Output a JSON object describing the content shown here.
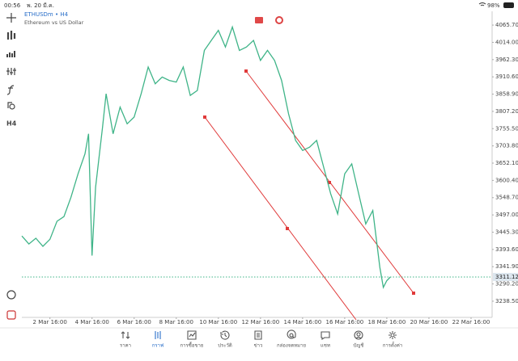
{
  "status_bar": {
    "time": "00:56",
    "date": "พ. 20 มี.ค.",
    "battery": "98%"
  },
  "toolbar": {
    "timeframe": "H4"
  },
  "chart_data": {
    "type": "line",
    "title": "ETHUSDm • H4",
    "subtitle": "Ethereum vs US Dollar",
    "x": [
      "1 Mar 08:00",
      "1 Mar 16:00",
      "2 Mar 00:00",
      "2 Mar 08:00",
      "2 Mar 16:00",
      "3 Mar 00:00",
      "3 Mar 08:00",
      "3 Mar 16:00",
      "4 Mar 00:00",
      "4 Mar 08:00",
      "4 Mar 12:00",
      "4 Mar 16:00",
      "4 Mar 20:00",
      "5 Mar 04:00",
      "5 Mar 08:00",
      "5 Mar 16:00",
      "6 Mar 00:00",
      "6 Mar 08:00",
      "6 Mar 16:00",
      "7 Mar 00:00",
      "7 Mar 08:00",
      "7 Mar 16:00",
      "8 Mar 00:00",
      "8 Mar 08:00",
      "8 Mar 16:00",
      "9 Mar 00:00",
      "9 Mar 08:00",
      "9 Mar 16:00",
      "10 Mar 00:00",
      "10 Mar 08:00",
      "10 Mar 16:00",
      "11 Mar 00:00",
      "11 Mar 08:00",
      "11 Mar 16:00",
      "12 Mar 00:00",
      "12 Mar 08:00",
      "12 Mar 16:00",
      "13 Mar 00:00",
      "13 Mar 08:00",
      "13 Mar 16:00",
      "14 Mar 00:00",
      "14 Mar 08:00",
      "14 Mar 16:00",
      "15 Mar 00:00",
      "15 Mar 08:00",
      "15 Mar 16:00",
      "16 Mar 00:00",
      "16 Mar 08:00",
      "16 Mar 16:00",
      "17 Mar 00:00",
      "17 Mar 08:00",
      "17 Mar 16:00",
      "18 Mar 00:00",
      "18 Mar 08:00",
      "18 Mar 12:00",
      "18 Mar 16:00",
      "18 Mar 20:00"
    ],
    "series": [
      {
        "name": "ETHUSDm",
        "color": "#3fb488",
        "values": [
          3434,
          3410,
          3427,
          3403,
          3424,
          3478,
          3492,
          3550,
          3620,
          3680,
          3740,
          3375,
          3580,
          3760,
          3860,
          3740,
          3820,
          3770,
          3790,
          3860,
          3940,
          3890,
          3910,
          3900,
          3895,
          3940,
          3855,
          3870,
          3990,
          4020,
          4050,
          4000,
          4060,
          3990,
          4000,
          4020,
          3960,
          3990,
          3960,
          3900,
          3800,
          3720,
          3690,
          3700,
          3720,
          3640,
          3560,
          3500,
          3620,
          3650,
          3560,
          3470,
          3510,
          3340,
          3280,
          3300,
          3311
        ]
      }
    ],
    "last_price": 3311.12,
    "xlim": [
      "1 Mar 08:00",
      "23 Mar 16:00"
    ],
    "xticks": [
      "2 Mar 16:00",
      "4 Mar 16:00",
      "6 Mar 16:00",
      "8 Mar 16:00",
      "10 Mar 16:00",
      "12 Mar 16:00",
      "14 Mar 16:00",
      "16 Mar 16:00",
      "18 Mar 16:00",
      "20 Mar 16:00",
      "22 Mar 16:00"
    ],
    "ylim": [
      3190,
      4107
    ],
    "yticks": [
      {
        "value": 4065.7,
        "label": "4065.70"
      },
      {
        "value": 4014,
        "label": "4014.00"
      },
      {
        "value": 3962.3,
        "label": "3962.30"
      },
      {
        "value": 3910.6,
        "label": "3910.60"
      },
      {
        "value": 3858.9,
        "label": "3858.90"
      },
      {
        "value": 3807.2,
        "label": "3807.20"
      },
      {
        "value": 3755.5,
        "label": "3755.50"
      },
      {
        "value": 3703.8,
        "label": "3703.80"
      },
      {
        "value": 3652.1,
        "label": "3652.10"
      },
      {
        "value": 3600.4,
        "label": "3600.40"
      },
      {
        "value": 3548.7,
        "label": "3548.70"
      },
      {
        "value": 3497,
        "label": "3497.00"
      },
      {
        "value": 3445.3,
        "label": "3445.30"
      },
      {
        "value": 3393.6,
        "label": "3393.60"
      },
      {
        "value": 3341.9,
        "label": "3341.90"
      },
      {
        "value": 3290.2,
        "label": "3290.20"
      },
      {
        "value": 3238.5,
        "label": "3238.50"
      }
    ]
  },
  "nav": {
    "tabs": [
      "ราคา",
      "กราฟ",
      "การซื้อขาย",
      "ประวัติ",
      "ข่าว",
      "กล่องจดหมาย",
      "แชท",
      "บัญชี",
      "การตั้งค่า"
    ],
    "active": 1
  }
}
